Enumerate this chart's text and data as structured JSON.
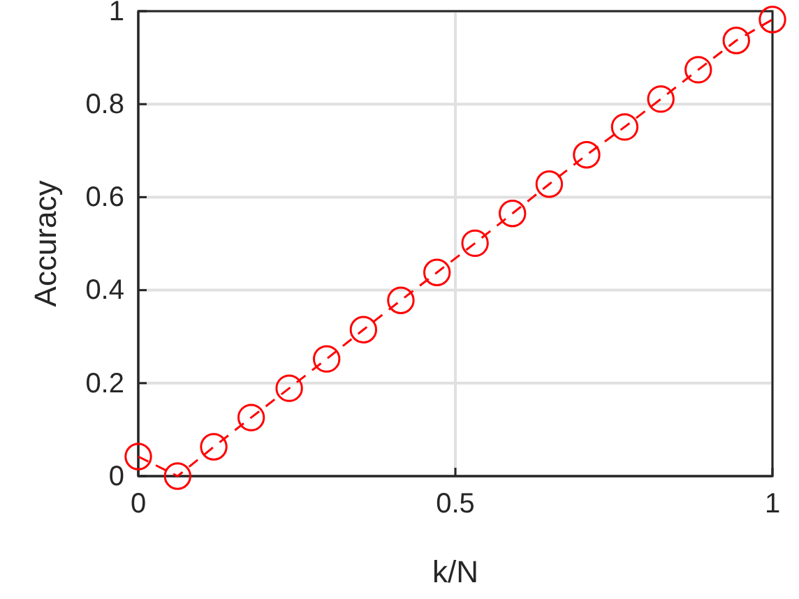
{
  "chart_data": {
    "type": "line",
    "xlabel": "k/N",
    "ylabel": "Accuracy",
    "x": [
      0,
      0.062,
      0.119,
      0.178,
      0.238,
      0.297,
      0.355,
      0.414,
      0.471,
      0.531,
      0.59,
      0.648,
      0.707,
      0.767,
      0.824,
      0.883,
      0.943,
      1
    ],
    "series": [
      {
        "color": "#ff0000",
        "values": [
          0.042,
          0,
          0.063,
          0.126,
          0.189,
          0.252,
          0.315,
          0.378,
          0.438,
          0.501,
          0.565,
          0.628,
          0.691,
          0.751,
          0.811,
          0.874,
          0.937,
          0.982
        ]
      }
    ],
    "xlim": [
      0,
      1
    ],
    "xticks": [
      0,
      0.5,
      1
    ],
    "ylim": [
      0,
      1
    ],
    "yticks": [
      0,
      0.2,
      0.4,
      0.6,
      0.8,
      1
    ],
    "grid": true,
    "marker": "circle",
    "line_style": "dashed"
  }
}
